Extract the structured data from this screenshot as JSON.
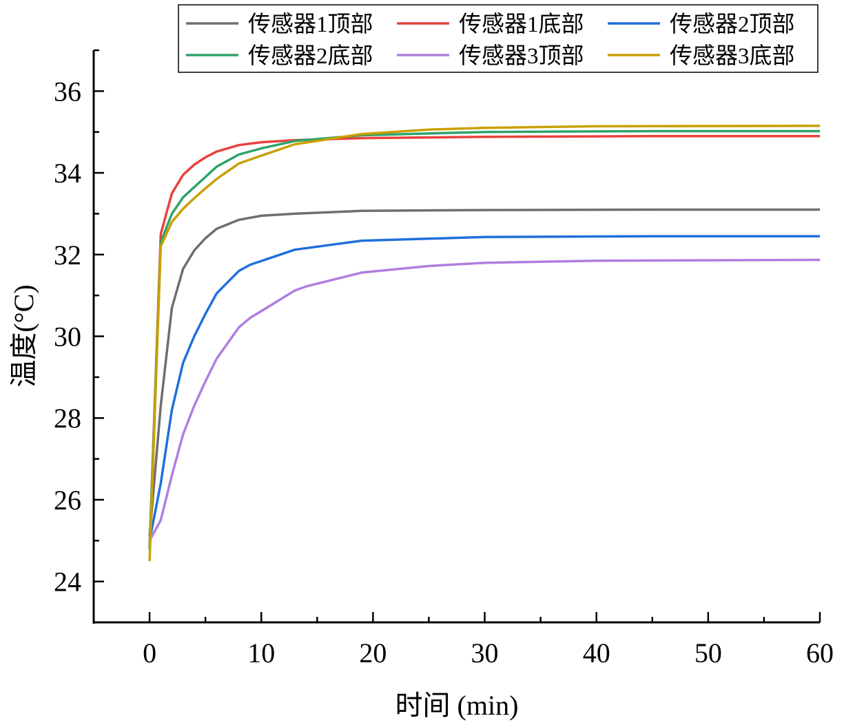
{
  "chart_data": {
    "type": "line",
    "xlabel": "时间 (min)",
    "ylabel": "温度(°C)",
    "xlim": [
      -5,
      60
    ],
    "ylim": [
      23,
      37
    ],
    "xticks": [
      0,
      10,
      20,
      30,
      40,
      50,
      60
    ],
    "yticks": [
      24,
      26,
      28,
      30,
      32,
      34,
      36
    ],
    "grid": false,
    "legend_position": "top-right",
    "series": [
      {
        "name": "传感器1顶部",
        "color": "#6e6e6e",
        "x": [
          0,
          1,
          2,
          3,
          4,
          5,
          6,
          8,
          10,
          13,
          19,
          30,
          45,
          60
        ],
        "y": [
          25.1,
          28.3,
          30.7,
          31.65,
          32.1,
          32.4,
          32.63,
          32.85,
          32.95,
          33.0,
          33.07,
          33.09,
          33.1,
          33.1
        ]
      },
      {
        "name": "传感器1底部",
        "color": "#e8413d",
        "x": [
          0,
          1,
          2,
          3,
          4,
          5,
          6,
          8,
          10,
          13,
          19,
          30,
          45,
          60
        ],
        "y": [
          24.8,
          32.5,
          33.5,
          33.95,
          34.2,
          34.38,
          34.52,
          34.68,
          34.75,
          34.8,
          34.85,
          34.88,
          34.9,
          34.9
        ]
      },
      {
        "name": "传感器2顶部",
        "color": "#1f6fdc",
        "x": [
          0,
          1,
          2,
          3,
          4,
          5,
          6,
          8,
          9,
          13,
          19,
          30,
          45,
          60
        ],
        "y": [
          25.0,
          26.4,
          28.2,
          29.35,
          30.0,
          30.55,
          31.05,
          31.6,
          31.75,
          32.12,
          32.34,
          32.43,
          32.45,
          32.45
        ]
      },
      {
        "name": "传感器2底部",
        "color": "#2ea36a",
        "x": [
          0,
          1,
          2,
          3,
          4,
          5,
          6,
          8,
          10,
          13,
          19,
          30,
          45,
          60
        ],
        "y": [
          24.8,
          32.3,
          33.0,
          33.4,
          33.65,
          33.9,
          34.15,
          34.45,
          34.6,
          34.78,
          34.92,
          35.0,
          35.02,
          35.02
        ]
      },
      {
        "name": "传感器3顶部",
        "color": "#b07ee0",
        "x": [
          0,
          1,
          2,
          3,
          4,
          5,
          6,
          8,
          9,
          13,
          14,
          19,
          25,
          30,
          40,
          60
        ],
        "y": [
          25.0,
          25.5,
          26.6,
          27.6,
          28.3,
          28.9,
          29.45,
          30.22,
          30.45,
          31.12,
          31.22,
          31.56,
          31.72,
          31.8,
          31.85,
          31.87
        ]
      },
      {
        "name": "传感器3底部",
        "color": "#c9a000",
        "x": [
          0,
          1,
          2,
          3,
          4,
          5,
          6,
          8,
          10,
          13,
          19,
          25,
          30,
          40,
          60
        ],
        "y": [
          24.5,
          32.2,
          32.8,
          33.12,
          33.38,
          33.62,
          33.85,
          34.23,
          34.42,
          34.7,
          34.95,
          35.06,
          35.1,
          35.14,
          35.15
        ]
      }
    ]
  }
}
